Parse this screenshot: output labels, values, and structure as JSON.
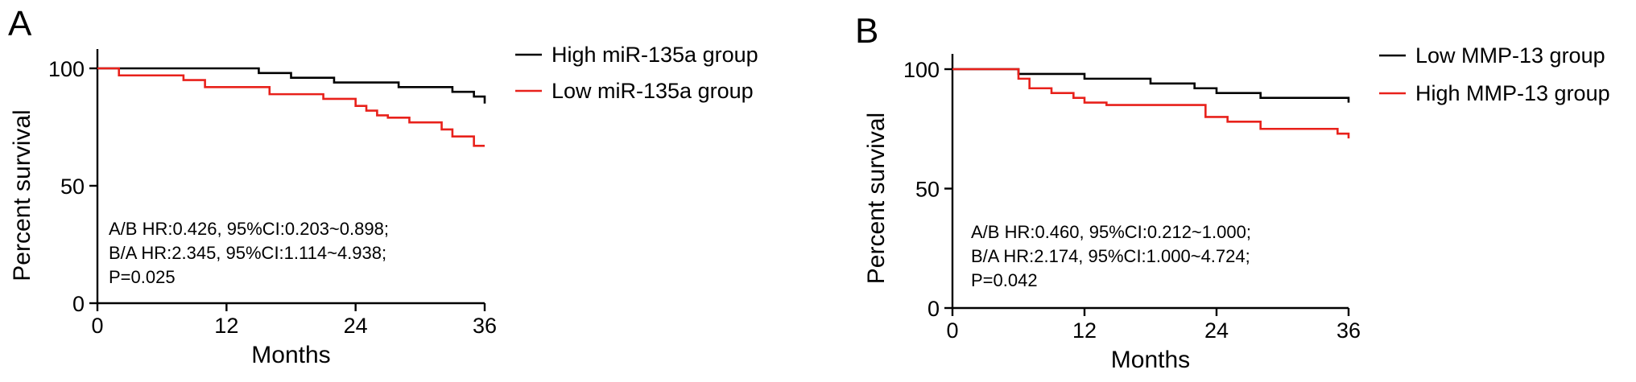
{
  "chart_data": [
    {
      "type": "line",
      "panel_label": "A",
      "xlabel": "Months",
      "ylabel": "Percent survival",
      "xlim": [
        0,
        36
      ],
      "ylim": [
        0,
        100
      ],
      "xticks": [
        "0",
        "12",
        "24",
        "36"
      ],
      "yticks": [
        "0",
        "50",
        "100"
      ],
      "legend_position": "top-right",
      "series": [
        {
          "name": "High miR-135a group",
          "color": "#000000",
          "x": [
            0,
            15,
            18,
            22,
            28,
            33,
            35,
            36
          ],
          "y": [
            100,
            98,
            96,
            94,
            92,
            90,
            88,
            85
          ]
        },
        {
          "name": "Low miR-135a group",
          "color": "#e8211b",
          "x": [
            0,
            2,
            8,
            10,
            16,
            21,
            24,
            25,
            26,
            27,
            29,
            32,
            33,
            35,
            36
          ],
          "y": [
            100,
            97,
            95,
            92,
            89,
            87,
            84,
            82,
            80,
            79,
            77,
            74,
            71,
            67,
            67
          ]
        }
      ],
      "annotations": [
        "A/B HR:0.426, 95%CI:0.203~0.898;",
        "B/A HR:2.345, 95%CI:1.114~4.938;",
        "P=0.025"
      ]
    },
    {
      "type": "line",
      "panel_label": "B",
      "xlabel": "Months",
      "ylabel": "Percent survival",
      "xlim": [
        0,
        36
      ],
      "ylim": [
        0,
        100
      ],
      "xticks": [
        "0",
        "12",
        "24",
        "36"
      ],
      "yticks": [
        "0",
        "50",
        "100"
      ],
      "legend_position": "top-right",
      "series": [
        {
          "name": "Low MMP-13 group",
          "color": "#000000",
          "x": [
            0,
            6,
            12,
            18,
            22,
            24,
            28,
            36
          ],
          "y": [
            100,
            98,
            96,
            94,
            92,
            90,
            88,
            86
          ]
        },
        {
          "name": "High MMP-13 group",
          "color": "#e8211b",
          "x": [
            0,
            6,
            7,
            9,
            11,
            12,
            14,
            16,
            23,
            25,
            28,
            35,
            36
          ],
          "y": [
            100,
            96,
            92,
            90,
            88,
            86,
            85,
            85,
            80,
            78,
            75,
            73,
            71
          ]
        }
      ],
      "annotations": [
        "A/B HR:0.460, 95%CI:0.212~1.000;",
        "B/A HR:2.174, 95%CI:1.000~4.724;",
        "P=0.042"
      ]
    }
  ]
}
